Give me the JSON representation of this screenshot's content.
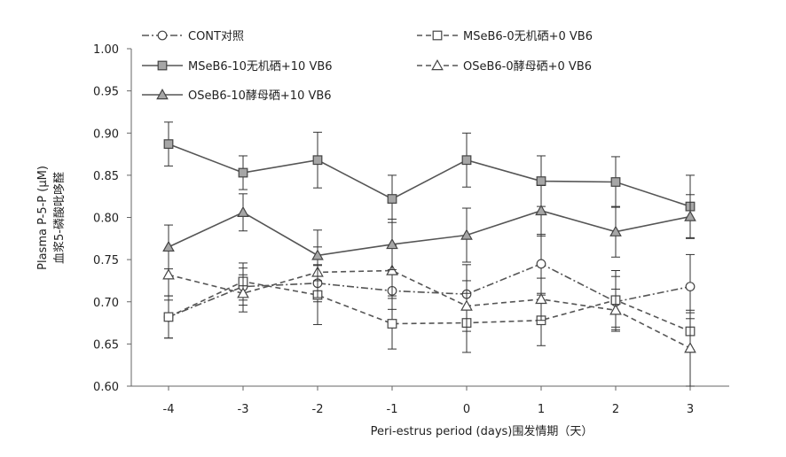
{
  "chart_data": {
    "type": "line",
    "title": "",
    "ylabel": "Plasma P-5-P (μM)",
    "ylabel_cn": "血浆5-磷酸吡哆醛",
    "xlabel": "Peri-estrus period (days)围发情期（天）",
    "categories": [
      "-4",
      "-3",
      "-2",
      "-1",
      "0",
      "1",
      "2",
      "3"
    ],
    "x": [
      -4,
      -3,
      -2,
      -1,
      0,
      1,
      2,
      3
    ],
    "ylim": [
      0.6,
      1.0
    ],
    "yticks": [
      "0.60",
      "0.65",
      "0.70",
      "0.75",
      "0.80",
      "0.85",
      "0.90",
      "0.95",
      "1.00"
    ],
    "grid": false,
    "legend_position": "top",
    "series": [
      {
        "name": "CONT对照",
        "line": "dashdot",
        "marker": "circle",
        "fill": "#ffffff",
        "values": [
          0.682,
          0.718,
          0.722,
          0.713,
          0.709,
          0.745,
          0.7,
          0.718
        ],
        "errors": [
          0.025,
          0.022,
          0.022,
          0.022,
          0.035,
          0.035,
          0.03,
          0.038
        ]
      },
      {
        "name": "MSeB6-0无机硒+0 VB6",
        "line": "dashed",
        "marker": "square",
        "fill": "#ffffff",
        "values": [
          0.682,
          0.724,
          0.708,
          0.674,
          0.675,
          0.678,
          0.702,
          0.665
        ],
        "errors": [
          0.025,
          0.022,
          0.035,
          0.03,
          0.035,
          0.03,
          0.035,
          0.022
        ]
      },
      {
        "name": "MSeB6-10无机硒+10 VB6",
        "line": "solid",
        "marker": "square",
        "fill": "#a6a6a6",
        "values": [
          0.887,
          0.853,
          0.868,
          0.822,
          0.868,
          0.843,
          0.842,
          0.813
        ],
        "errors": [
          0.026,
          0.02,
          0.033,
          0.028,
          0.032,
          0.03,
          0.03,
          0.037
        ]
      },
      {
        "name": "OSeB6-0酵母硒+0 VB6",
        "line": "dashed",
        "marker": "triangle",
        "fill": "#ffffff",
        "values": [
          0.732,
          0.71,
          0.735,
          0.737,
          0.695,
          0.703,
          0.69,
          0.645
        ],
        "errors": [
          0.03,
          0.022,
          0.03,
          0.03,
          0.03,
          0.025,
          0.025,
          0.045
        ]
      },
      {
        "name": "OSeB6-10酵母硒+10 VB6",
        "line": "solid",
        "marker": "triangle",
        "fill": "#a6a6a6",
        "values": [
          0.765,
          0.806,
          0.755,
          0.768,
          0.779,
          0.808,
          0.783,
          0.801
        ],
        "errors": [
          0.026,
          0.022,
          0.03,
          0.03,
          0.032,
          0.03,
          0.03,
          0.026
        ]
      }
    ],
    "legend_order": [
      0,
      2,
      4,
      1,
      3
    ]
  }
}
